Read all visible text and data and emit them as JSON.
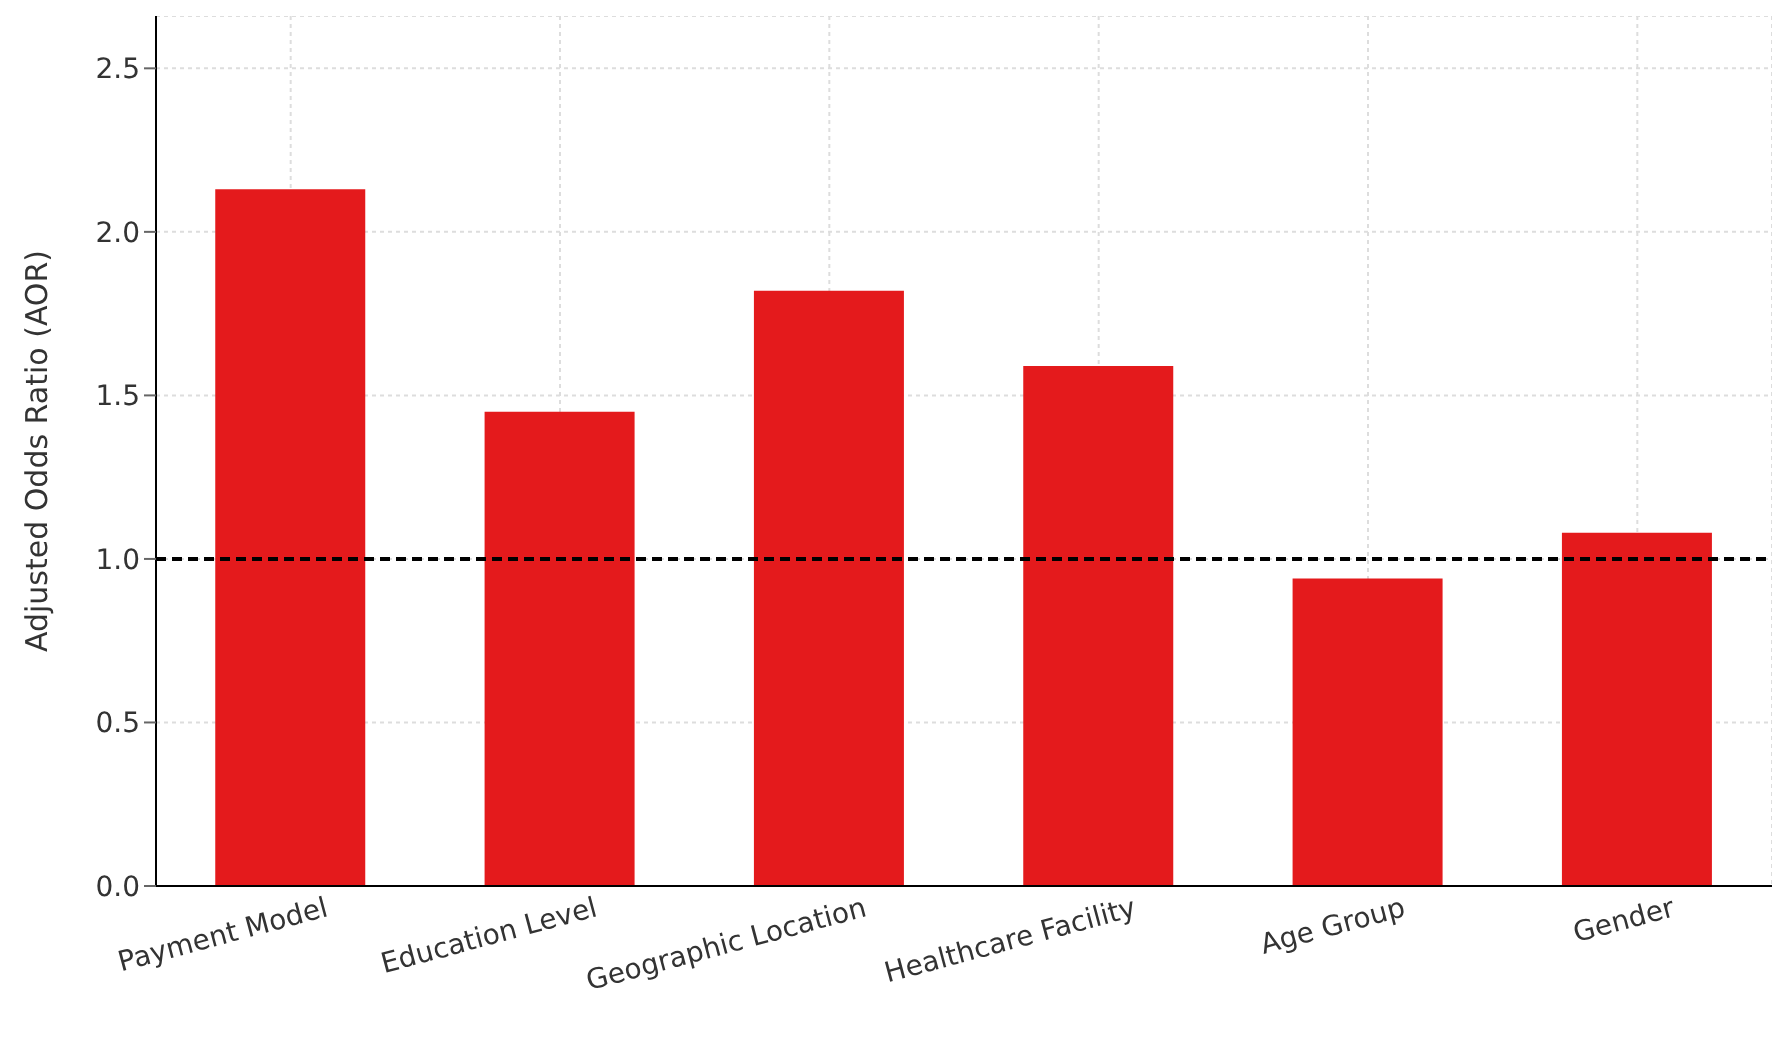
{
  "chart_data": {
    "type": "bar",
    "ylabel": "Adjusted Odds Ratio (AOR)",
    "categories": [
      "Payment Model",
      "Education Level",
      "Geographic Location",
      "Healthcare Facility",
      "Age Group",
      "Gender"
    ],
    "values": [
      2.13,
      1.45,
      1.82,
      1.59,
      0.94,
      1.08
    ],
    "color": "#e41a1c",
    "ylim": [
      0,
      2.66
    ],
    "yticks": [
      {
        "value": 0,
        "label": "0.0"
      },
      {
        "value": 0.5,
        "label": "0.5"
      },
      {
        "value": 1,
        "label": "1.0"
      },
      {
        "value": 1.5,
        "label": "1.5"
      },
      {
        "value": 2,
        "label": "2.0"
      },
      {
        "value": 2.5,
        "label": "2.5"
      }
    ],
    "grid": true,
    "ref_lines": [
      {
        "axis": "y",
        "value": 1,
        "color": "#000000",
        "line_style": "dashed"
      }
    ]
  }
}
